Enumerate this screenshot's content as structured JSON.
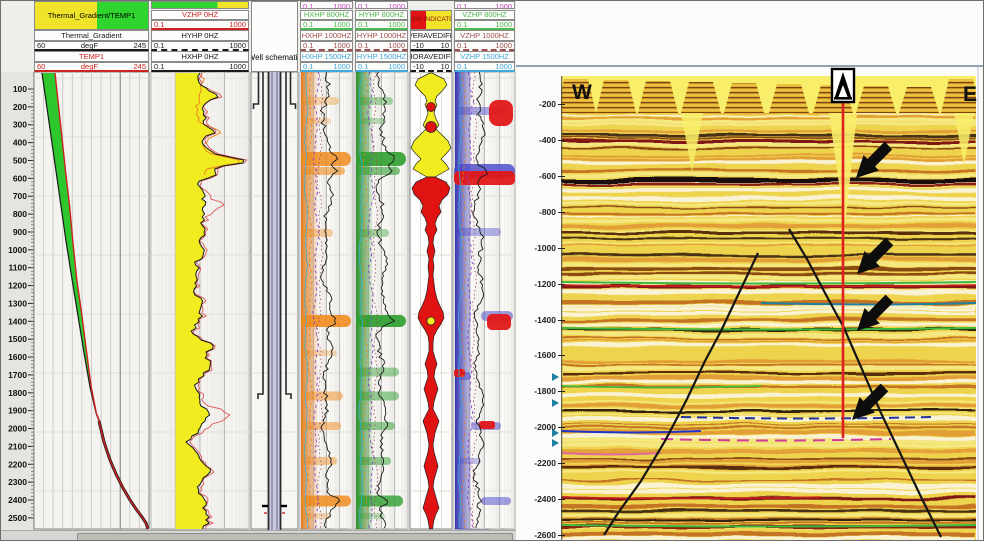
{
  "app": {
    "type": "well-log-and-seismic-section-viewer"
  },
  "log_header": {
    "tracks": [
      {
        "id": "temp",
        "title": "Thermal_Gradient/TEMP1",
        "title_bg": [
          "#f0e42a",
          "#2fd42f"
        ],
        "curves": [
          {
            "name": "Thermal_Gradient",
            "color": "#1a1a1a",
            "min": "60",
            "unit": "degF",
            "max": "245"
          },
          {
            "name": "TEMP1",
            "color": "#cc2222",
            "min": "60",
            "unit": "degF",
            "max": "245"
          }
        ]
      },
      {
        "id": "hz0",
        "bar": [
          "#2fd42f",
          "#f0e42a"
        ],
        "curves": [
          {
            "name": "VZHP 0HZ",
            "color": "#cc2222",
            "min": "0.1",
            "max": "1000"
          },
          {
            "name": "HYHP 0HZ",
            "color": "#1a1a1a",
            "min": "0.1",
            "max": "1000"
          },
          {
            "name": "HXHP 0HZ",
            "color": "#1a1a1a",
            "min": "0.1",
            "max": "1000"
          }
        ]
      },
      {
        "id": "schematic",
        "title": "Well schematic"
      },
      {
        "id": "hxhp",
        "top_scale": {
          "min": "0.1",
          "max": "1000",
          "color": "#cc44cc"
        },
        "curves": [
          {
            "name": "HXHP 800HZ",
            "color": "#4db84d",
            "min": "0.1",
            "max": "1000"
          },
          {
            "name": "HXHP 1000HZ",
            "color": "#a05050",
            "min": "0.1",
            "max": "1000"
          },
          {
            "name": "HXHP 1500HZ",
            "color": "#3fa8dc",
            "min": "0.1",
            "max": "1000"
          }
        ]
      },
      {
        "id": "hyhp",
        "top_scale": {
          "min": "0.1",
          "max": "1000",
          "color": "#cc44cc"
        },
        "curves": [
          {
            "name": "HYHP 800HZ",
            "color": "#4db84d",
            "min": "0.1",
            "max": "1000"
          },
          {
            "name": "HYHP 1000HZ",
            "color": "#a05050",
            "min": "0.1",
            "max": "1000"
          },
          {
            "name": "HYHP 1500HZ",
            "color": "#3fa8dc",
            "min": "0.1",
            "max": "1000"
          }
        ]
      },
      {
        "id": "flow",
        "legend": {
          "text": "FLOW INDICATOR",
          "bg": [
            "#e01212",
            "#f0e42a"
          ],
          "text_color": "#8a1010"
        },
        "curves": [
          {
            "name": "VERAVEDIFF",
            "color": "#1a1a1a",
            "min": "-10",
            "max": "10"
          },
          {
            "name": "HORAVEDIFF",
            "color": "#1a1a1a",
            "min": "-10",
            "max": "10"
          }
        ]
      },
      {
        "id": "vzhp",
        "top_scale": {
          "min": "0.1",
          "max": "1000",
          "color": "#cc44cc"
        },
        "curves": [
          {
            "name": "VZHP 800HZ",
            "color": "#4db84d",
            "min": "0.1",
            "max": "1000"
          },
          {
            "name": "VZHP 1000HZ",
            "color": "#a05050",
            "min": "0.1",
            "max": "1000"
          },
          {
            "name": "VZHP 1500HZ",
            "color": "#3fa8dc",
            "min": "0.1",
            "max": "1000"
          }
        ]
      }
    ]
  },
  "depth_ruler": {
    "labels": [
      "100",
      "200",
      "300",
      "400",
      "500",
      "600",
      "700",
      "800",
      "900",
      "1000",
      "1100",
      "1200",
      "1300",
      "1400",
      "1500",
      "1600",
      "1700",
      "1800",
      "1900",
      "2000",
      "2100",
      "2200",
      "2300",
      "2400",
      "2500"
    ]
  },
  "seismic": {
    "west_label": "W",
    "east_label": "E",
    "depth_labels": [
      "-200",
      "-400",
      "-600",
      "-800",
      "-1000",
      "-1200",
      "-1400",
      "-1600",
      "-1800",
      "-2000",
      "-2200",
      "-2400",
      "-2600"
    ],
    "well_marker": {
      "symbol": "derrick-flag",
      "path_color": "#e02020"
    },
    "arrow_annotations": {
      "count": 4,
      "approx_depths": [
        "-600",
        "-1150",
        "-1450",
        "-1950"
      ]
    },
    "fault_lines": 2,
    "horizon_colors": [
      "#3cb83c",
      "#cc2020",
      "#2233cc",
      "#d23a9a",
      "#1f7f9f"
    ]
  }
}
